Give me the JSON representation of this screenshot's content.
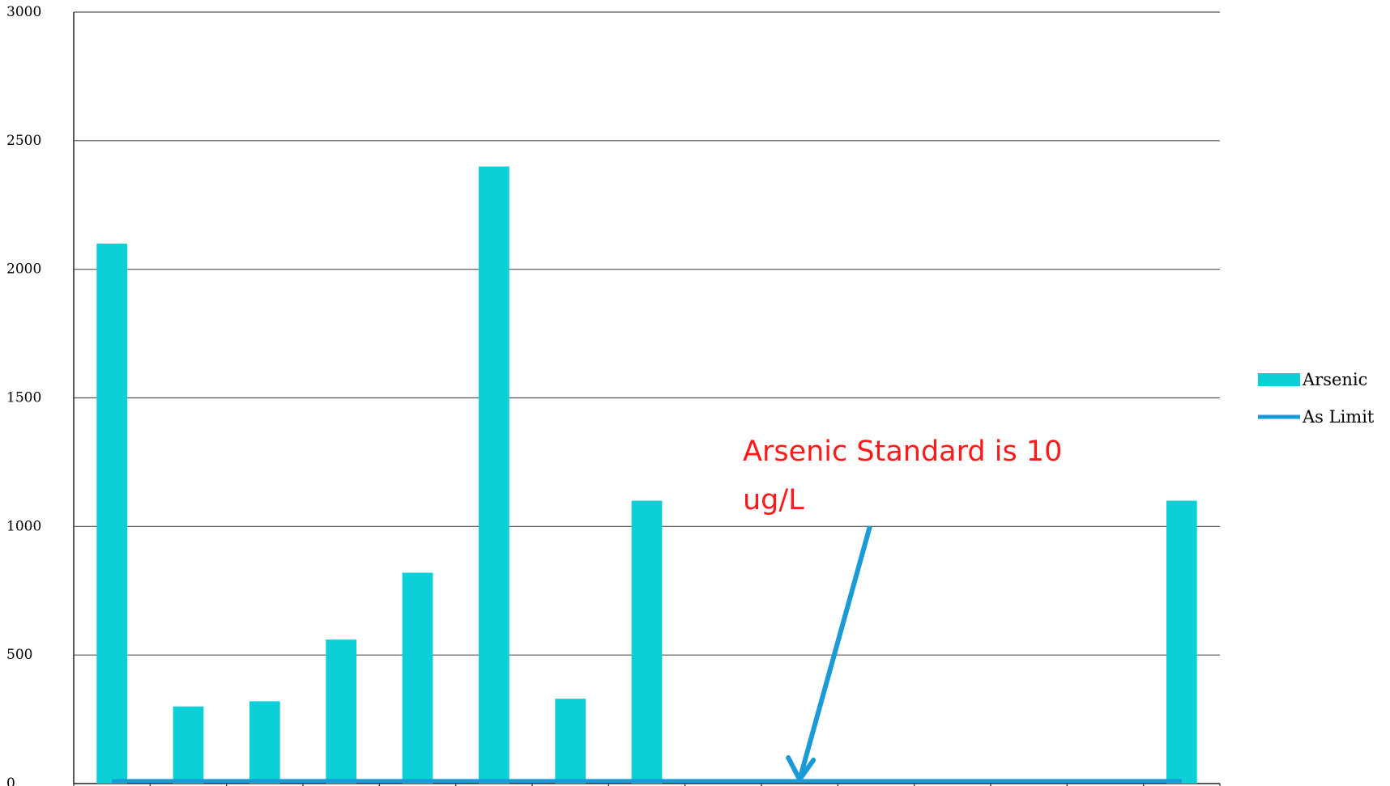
{
  "chart_data": {
    "type": "bar",
    "categories": [
      "",
      "",
      "",
      "",
      "",
      "",
      "",
      "",
      "",
      "",
      "",
      "",
      "",
      "",
      ""
    ],
    "series": [
      {
        "name": "Arsenic",
        "type": "bar",
        "values": [
          2100,
          300,
          320,
          560,
          820,
          2400,
          330,
          1100,
          0,
          0,
          0,
          0,
          0,
          0,
          1100
        ],
        "color": "#0dcfd8"
      },
      {
        "name": "As Limit",
        "type": "line",
        "values": [
          10,
          10,
          10,
          10,
          10,
          10,
          10,
          10,
          10,
          10,
          10,
          10,
          10,
          10,
          10
        ],
        "color": "#1a9bd7"
      }
    ],
    "title": "",
    "xlabel": "",
    "ylabel": "",
    "ylim": [
      0,
      3000
    ],
    "yticks": [
      0,
      500,
      1000,
      1500,
      2000,
      2500,
      3000
    ],
    "ytick_labels": [
      "0",
      "500",
      "1000",
      "1500",
      "2000",
      "2500",
      "3000"
    ],
    "grid": true,
    "legend_position": "right",
    "annotation": {
      "lines": [
        "Arsenic Standard is 10",
        "ug/L"
      ],
      "color": "#ff1a1a",
      "arrow_color": "#1a9bd7",
      "arrow_points_to_category_index": 9.5,
      "arrow_points_to_value": 0
    }
  }
}
